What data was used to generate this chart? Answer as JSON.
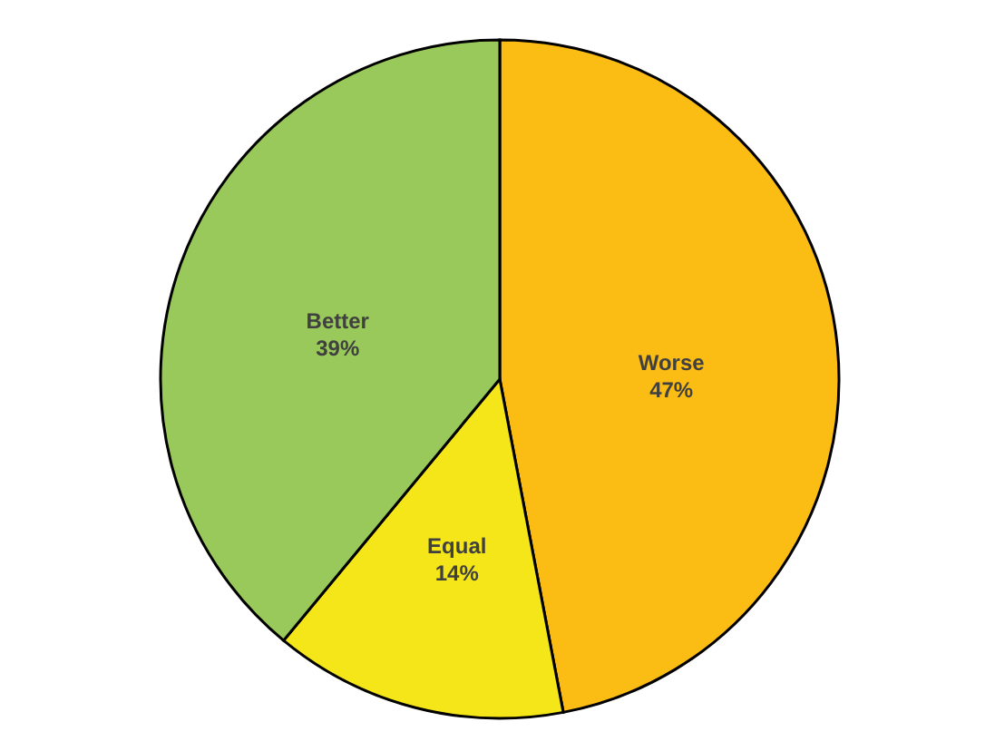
{
  "chart_data": {
    "type": "pie",
    "categories": [
      "Worse",
      "Equal",
      "Better"
    ],
    "values": [
      47,
      14,
      39
    ],
    "value_labels": [
      "47%",
      "14%",
      "39%"
    ],
    "colors": [
      "#fbbd14",
      "#f4e619",
      "#99c95a"
    ]
  }
}
